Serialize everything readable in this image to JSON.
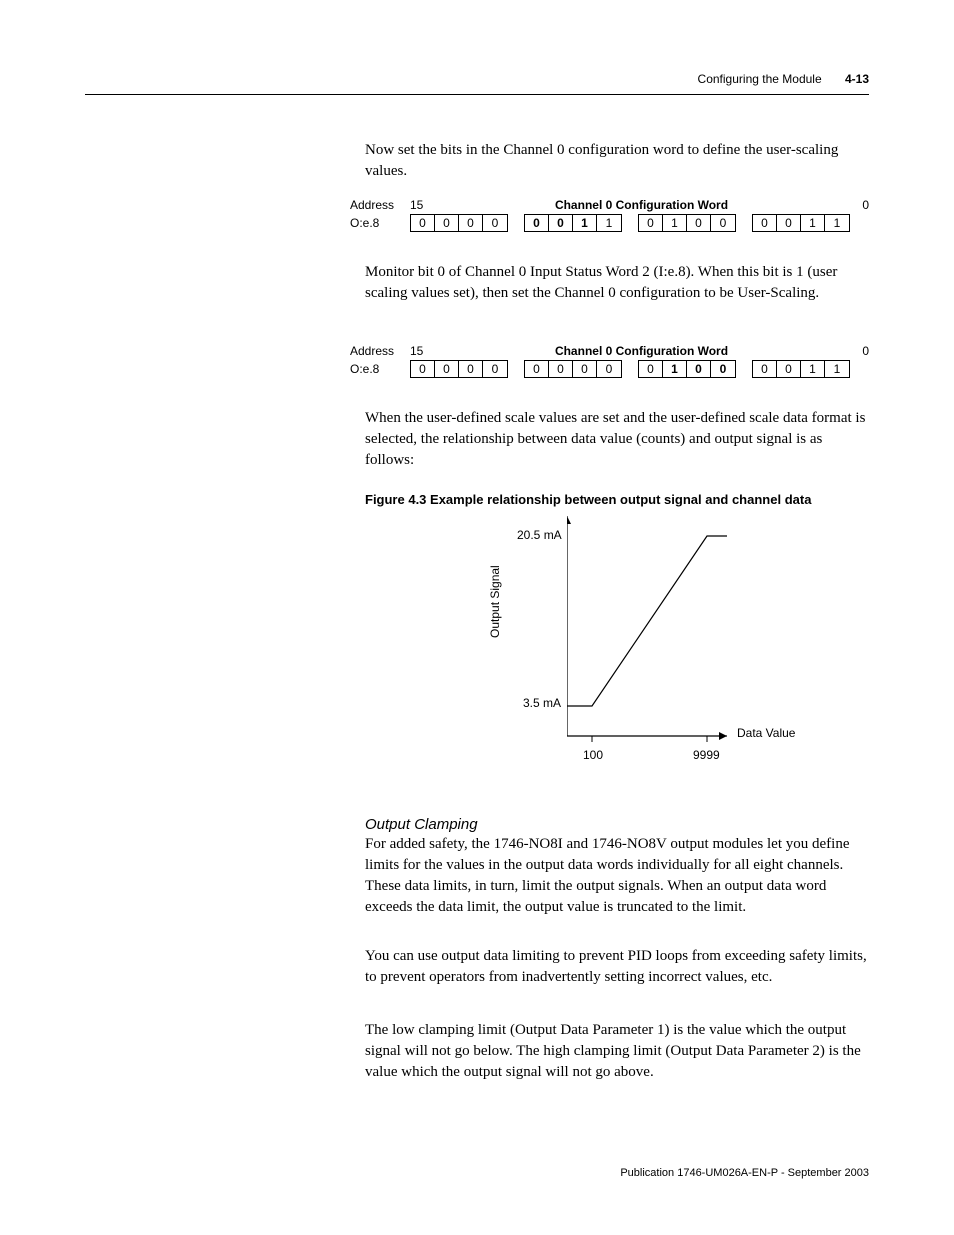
{
  "header": {
    "title": "Configuring the Module",
    "page": "4-13"
  },
  "para1": "Now set the bits in the Channel 0 configuration word to define the user-scaling values.",
  "bitword1": {
    "addr_label": "Address",
    "bit_hi": "15",
    "title": "Channel 0 Configuration Word",
    "bit_lo": "0",
    "addr_val": "O:e.8",
    "groups": [
      {
        "bits": [
          "0",
          "0",
          "0",
          "0"
        ],
        "bold": [
          false,
          false,
          false,
          false
        ]
      },
      {
        "bits": [
          "0",
          "0",
          "1",
          "1"
        ],
        "bold": [
          true,
          true,
          true,
          false
        ]
      },
      {
        "bits": [
          "0",
          "1",
          "0",
          "0"
        ],
        "bold": [
          false,
          false,
          false,
          false
        ]
      },
      {
        "bits": [
          "0",
          "0",
          "1",
          "1"
        ],
        "bold": [
          false,
          false,
          false,
          false
        ]
      }
    ]
  },
  "para2": "Monitor bit 0 of Channel 0 Input Status Word 2 (I:e.8). When this bit is 1 (user scaling values set), then set the Channel 0 configuration to be User-Scaling.",
  "bitword2": {
    "addr_label": "Address",
    "bit_hi": "15",
    "title": "Channel 0 Configuration Word",
    "bit_lo": "0",
    "addr_val": "O:e.8",
    "groups": [
      {
        "bits": [
          "0",
          "0",
          "0",
          "0"
        ],
        "bold": [
          false,
          false,
          false,
          false
        ]
      },
      {
        "bits": [
          "0",
          "0",
          "0",
          "0"
        ],
        "bold": [
          false,
          false,
          false,
          false
        ]
      },
      {
        "bits": [
          "0",
          "1",
          "0",
          "0"
        ],
        "bold": [
          false,
          true,
          true,
          true
        ]
      },
      {
        "bits": [
          "0",
          "0",
          "1",
          "1"
        ],
        "bold": [
          false,
          false,
          false,
          false
        ]
      }
    ]
  },
  "para3": "When the user-defined scale values are set and the user-defined scale data format is selected, the relationship between data value (counts) and output signal is as follows:",
  "figure_caption": "Figure 4.3 Example relationship between output signal and channel data",
  "chart": {
    "type": "line",
    "ylabel": "Output Signal",
    "xlabel": "Data Value",
    "ytick_hi": "20.5 mA",
    "ytick_lo": "3.5 mA",
    "xtick_lo": "100",
    "xtick_hi": "9999",
    "axis_color": "#000000",
    "line_color": "#000000",
    "background": "#ffffff",
    "x_range": [
      0,
      160
    ],
    "y_range": [
      0,
      220
    ],
    "data_points": [
      [
        25,
        190
      ],
      [
        25,
        190
      ],
      [
        140,
        20
      ],
      [
        140,
        20
      ]
    ],
    "x_tick_positions": [
      25,
      140
    ],
    "y_tick_positions": [
      20,
      190
    ]
  },
  "subsection": "Output Clamping",
  "para4": "For added safety, the 1746-NO8I and 1746-NO8V output modules let you define limits for the values in the output data words individually for all eight channels. These data limits, in turn, limit the output signals. When an output data word exceeds the data limit, the output value is truncated to the limit.",
  "para5": "You can use output data limiting to prevent PID loops from exceeding safety limits, to prevent operators from inadvertently setting incorrect values, etc.",
  "para6": "The low clamping limit (Output Data Parameter 1) is the value which the output signal will not go below. The high clamping limit (Output Data Parameter 2) is the value which the output signal will not go above.",
  "footer": "Publication 1746-UM026A-EN-P - September 2003"
}
